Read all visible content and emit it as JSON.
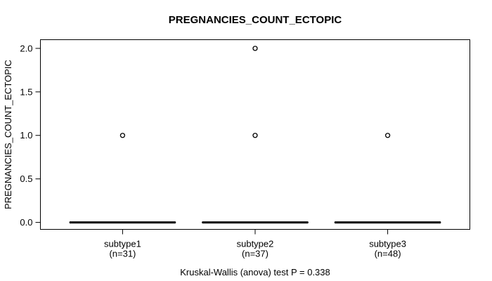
{
  "chart_data": {
    "type": "boxplot",
    "title": "PREGNANCIES_COUNT_ECTOPIC",
    "ylabel": "PREGNANCIES_COUNT_ECTOPIC",
    "xlabel": "",
    "annotation": "Kruskal-Wallis (anova) test P = 0.338",
    "p_value": 0.338,
    "categories": [
      "subtype1",
      "subtype2",
      "subtype3"
    ],
    "category_sublabels": [
      "(n=31)",
      "(n=37)",
      "(n=48)"
    ],
    "sample_sizes": [
      31,
      37,
      48
    ],
    "yticks": [
      0.0,
      0.5,
      1.0,
      1.5,
      2.0
    ],
    "ylim": [
      -0.08,
      2.1
    ],
    "xlim": [
      0.38,
      3.62
    ],
    "grid": false,
    "legend": null,
    "series": [
      {
        "name": "subtype1",
        "min": 0,
        "q1": 0,
        "median": 0,
        "q3": 0,
        "max": 0,
        "outliers": [
          1.0
        ]
      },
      {
        "name": "subtype2",
        "min": 0,
        "q1": 0,
        "median": 0,
        "q3": 0,
        "max": 0,
        "outliers": [
          1.0,
          2.0
        ]
      },
      {
        "name": "subtype3",
        "min": 0,
        "q1": 0,
        "median": 0,
        "q3": 0,
        "max": 0,
        "outliers": [
          1.0
        ]
      }
    ],
    "colors": {
      "foreground": "#000000",
      "background": "#ffffff"
    }
  }
}
